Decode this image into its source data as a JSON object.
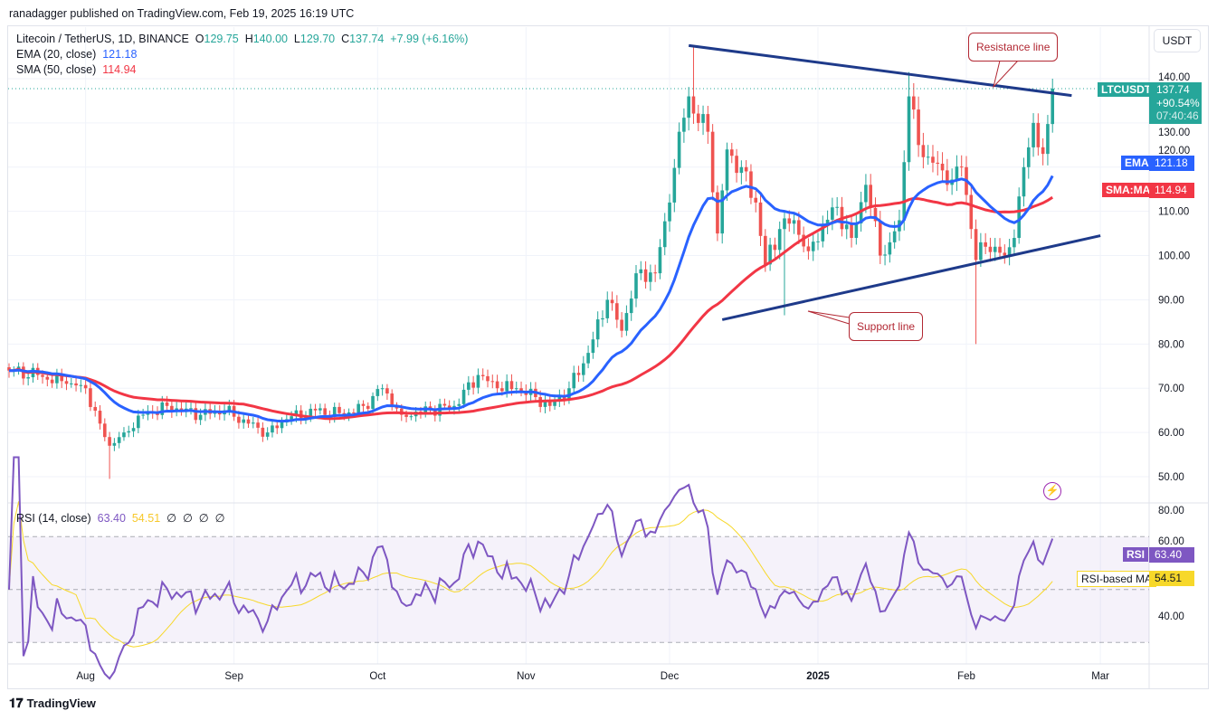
{
  "publish_line": "ranadagger published on TradingView.com, Feb 19, 2025 16:19 UTC",
  "symbol": {
    "name": "Litecoin / TetherUS, 1D, BINANCE",
    "o_label": "O",
    "o": "129.75",
    "h_label": "H",
    "h": "140.00",
    "l_label": "L",
    "l": "129.70",
    "c_label": "C",
    "c": "137.74",
    "change": "+7.99 (+6.16%)"
  },
  "ema": {
    "label": "EMA (20, close)",
    "value": "121.18",
    "tag": "EMA",
    "color": "#2962ff"
  },
  "sma": {
    "label": "SMA (50, close)",
    "value": "114.94",
    "tag": "SMA:MA",
    "color": "#f23645"
  },
  "currency": "USDT",
  "last_price": {
    "ticker": "LTCUSDT",
    "price": "137.74",
    "pct": "+90.54%",
    "countdown": "07:40:46",
    "color": "#26a69a"
  },
  "price_axis": [
    "140.00",
    "130.00",
    "120.00",
    "110.00",
    "100.00",
    "90.00",
    "80.00",
    "70.00",
    "60.00",
    "50.00"
  ],
  "time_axis": [
    "Aug",
    "Sep",
    "Oct",
    "Nov",
    "Dec",
    "2025",
    "Feb",
    "Mar"
  ],
  "rsi": {
    "label": "RSI (14, close)",
    "value": "63.40",
    "ma_value": "54.51",
    "extras": [
      "∅",
      "∅",
      "∅",
      "∅"
    ],
    "tag": "RSI",
    "ma_tag": "RSI-based MA",
    "axis": [
      "80.00",
      "60.00",
      "40.00"
    ],
    "color": "#7e57c2",
    "ma_color": "#f7d82a"
  },
  "annotations": {
    "resistance": "Resistance line",
    "support": "Support line"
  },
  "brand": "TradingView",
  "chart_data": {
    "type": "candlestick",
    "start_date": "2024-07-16",
    "days": 219,
    "close_anchors": [
      [
        0,
        74
      ],
      [
        6,
        73
      ],
      [
        12,
        71
      ],
      [
        16,
        70
      ],
      [
        19,
        62
      ],
      [
        21,
        57
      ],
      [
        24,
        60
      ],
      [
        28,
        64
      ],
      [
        33,
        66
      ],
      [
        40,
        64
      ],
      [
        45,
        65
      ],
      [
        50,
        62
      ],
      [
        54,
        60
      ],
      [
        58,
        63
      ],
      [
        64,
        65
      ],
      [
        70,
        64
      ],
      [
        74,
        66
      ],
      [
        78,
        70
      ],
      [
        82,
        64
      ],
      [
        88,
        65
      ],
      [
        93,
        66
      ],
      [
        98,
        73
      ],
      [
        102,
        70
      ],
      [
        106,
        70
      ],
      [
        110,
        68
      ],
      [
        113,
        66
      ],
      [
        117,
        70
      ],
      [
        121,
        78
      ],
      [
        125,
        90
      ],
      [
        128,
        83
      ],
      [
        131,
        96
      ],
      [
        135,
        96
      ],
      [
        138,
        112
      ],
      [
        140,
        128
      ],
      [
        142,
        136
      ],
      [
        144,
        130
      ],
      [
        146,
        128
      ],
      [
        148,
        105
      ],
      [
        150,
        124
      ],
      [
        153,
        120
      ],
      [
        156,
        112
      ],
      [
        158,
        98
      ],
      [
        161,
        106
      ],
      [
        164,
        108
      ],
      [
        167,
        101
      ],
      [
        170,
        107
      ],
      [
        173,
        111
      ],
      [
        176,
        104
      ],
      [
        179,
        116
      ],
      [
        182,
        100
      ],
      [
        184,
        103
      ],
      [
        186,
        108
      ],
      [
        188,
        136
      ],
      [
        190,
        125
      ],
      [
        193,
        121
      ],
      [
        196,
        116
      ],
      [
        199,
        120
      ],
      [
        201,
        106
      ],
      [
        202,
        99
      ],
      [
        204,
        102
      ],
      [
        206,
        102
      ],
      [
        208,
        100
      ],
      [
        210,
        104
      ],
      [
        212,
        120
      ],
      [
        214,
        130
      ],
      [
        216,
        123
      ],
      [
        217,
        129.75
      ],
      [
        218,
        137.74
      ]
    ],
    "wick_extremes": [
      [
        21,
        49.5
      ],
      [
        143,
        147.5
      ],
      [
        162,
        86.5
      ],
      [
        188,
        141.5
      ],
      [
        202,
        80
      ],
      [
        218,
        140
      ]
    ],
    "resistance_line": [
      [
        142,
        147.5
      ],
      [
        222,
        136.2
      ]
    ],
    "support_line": [
      [
        149,
        85.5
      ],
      [
        228,
        104.5
      ]
    ],
    "price_range": [
      45,
      150
    ],
    "rsi_range": [
      25,
      85
    ],
    "rsi_levels": [
      70,
      50,
      30
    ]
  }
}
